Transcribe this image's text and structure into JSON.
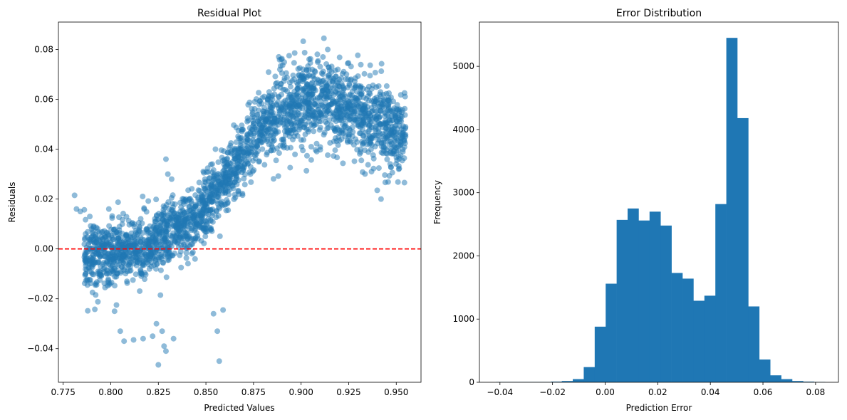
{
  "chart_data": [
    {
      "type": "scatter",
      "title": "Residual Plot",
      "xlabel": "Predicted Values",
      "ylabel": "Residuals",
      "xlim": [
        0.7725,
        0.963
      ],
      "ylim": [
        -0.0535,
        0.091
      ],
      "xticks": [
        0.775,
        0.8,
        0.825,
        0.85,
        0.875,
        0.9,
        0.925,
        0.95
      ],
      "xtick_labels": [
        "0.775",
        "0.800",
        "0.825",
        "0.850",
        "0.875",
        "0.900",
        "0.925",
        "0.950"
      ],
      "yticks": [
        -0.04,
        -0.02,
        0.0,
        0.02,
        0.04,
        0.06,
        0.08
      ],
      "ytick_labels": [
        "−0.04",
        "−0.02",
        "0.00",
        "0.02",
        "0.04",
        "0.06",
        "0.08"
      ],
      "color": "#1f77b4",
      "point_alpha": 0.5,
      "reference_line": {
        "y": 0.0,
        "color": "#ff0000",
        "style": "dashed"
      },
      "trend": {
        "x": [
          0.786,
          0.795,
          0.805,
          0.815,
          0.825,
          0.835,
          0.845,
          0.855,
          0.865,
          0.875,
          0.885,
          0.895,
          0.905,
          0.915,
          0.925,
          0.935,
          0.945,
          0.955
        ],
        "y": [
          -0.002,
          -0.003,
          -0.001,
          0.0,
          0.003,
          0.007,
          0.012,
          0.022,
          0.033,
          0.045,
          0.052,
          0.058,
          0.06,
          0.058,
          0.056,
          0.052,
          0.049,
          0.044
        ]
      },
      "outliers": [
        {
          "x": 0.781,
          "y": 0.0215
        },
        {
          "x": 0.782,
          "y": 0.016
        },
        {
          "x": 0.784,
          "y": 0.015
        },
        {
          "x": 0.789,
          "y": 0.013
        },
        {
          "x": 0.79,
          "y": 0.008
        },
        {
          "x": 0.797,
          "y": -0.0155
        },
        {
          "x": 0.799,
          "y": 0.016
        },
        {
          "x": 0.803,
          "y": -0.0225
        },
        {
          "x": 0.802,
          "y": -0.025
        },
        {
          "x": 0.805,
          "y": -0.033
        },
        {
          "x": 0.807,
          "y": -0.037
        },
        {
          "x": 0.812,
          "y": -0.0365
        },
        {
          "x": 0.817,
          "y": -0.036
        },
        {
          "x": 0.822,
          "y": -0.035
        },
        {
          "x": 0.824,
          "y": -0.03
        },
        {
          "x": 0.825,
          "y": -0.0465
        },
        {
          "x": 0.827,
          "y": -0.033
        },
        {
          "x": 0.828,
          "y": -0.039
        },
        {
          "x": 0.829,
          "y": -0.041
        },
        {
          "x": 0.833,
          "y": -0.036
        },
        {
          "x": 0.829,
          "y": 0.036
        },
        {
          "x": 0.83,
          "y": 0.03
        },
        {
          "x": 0.832,
          "y": 0.028
        },
        {
          "x": 0.856,
          "y": -0.033
        },
        {
          "x": 0.857,
          "y": -0.045
        },
        {
          "x": 0.854,
          "y": -0.026
        },
        {
          "x": 0.859,
          "y": -0.0245
        },
        {
          "x": 0.855,
          "y": 0.04
        },
        {
          "x": 0.912,
          "y": 0.0845
        },
        {
          "x": 0.914,
          "y": 0.08
        },
        {
          "x": 0.94,
          "y": 0.0235
        },
        {
          "x": 0.942,
          "y": 0.02
        },
        {
          "x": 0.937,
          "y": 0.031
        }
      ]
    },
    {
      "type": "bar",
      "subtype": "histogram",
      "title": "Error Distribution",
      "xlabel": "Prediction Error",
      "ylabel": "Frequency",
      "xlim": [
        -0.0478,
        0.0887
      ],
      "ylim": [
        0,
        5700
      ],
      "xticks": [
        -0.04,
        -0.02,
        0.0,
        0.02,
        0.04,
        0.06,
        0.08
      ],
      "xtick_labels": [
        "−0.04",
        "−0.02",
        "0.00",
        "0.02",
        "0.04",
        "0.06",
        "0.08"
      ],
      "yticks": [
        0,
        1000,
        2000,
        3000,
        4000,
        5000
      ],
      "ytick_labels": [
        "0",
        "1000",
        "2000",
        "3000",
        "4000",
        "5000"
      ],
      "color": "#1f77b4",
      "bin_start": -0.0415,
      "bin_width": 0.00417,
      "values": [
        5,
        5,
        5,
        5,
        5,
        10,
        20,
        50,
        240,
        880,
        1560,
        2570,
        2750,
        2560,
        2700,
        2480,
        1730,
        1640,
        1290,
        1370,
        2820,
        5450,
        4180,
        1200,
        360,
        110,
        50,
        20,
        10,
        5
      ]
    }
  ]
}
